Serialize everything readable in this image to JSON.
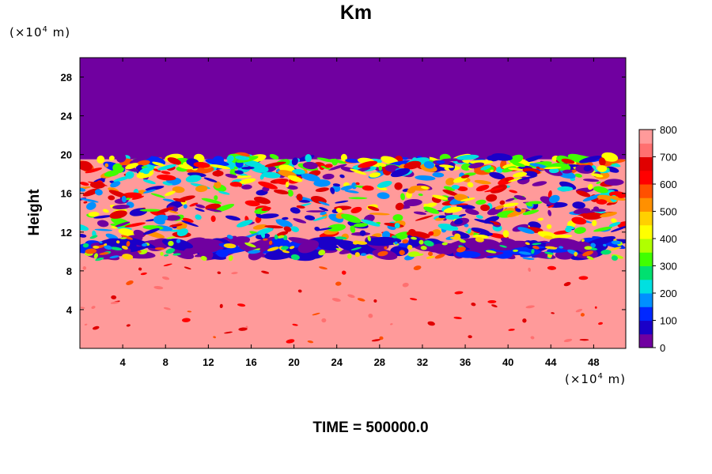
{
  "chart_data": {
    "type": "heatmap",
    "title": "Km",
    "ylabel": "Height",
    "xlabel": "",
    "y_unit": "(×10",
    "x_unit": "(×10",
    "unit_exp": "4",
    "unit_tail": "m)",
    "xlim": [
      0,
      51
    ],
    "ylim": [
      0,
      30
    ],
    "x_ticks": [
      4,
      8,
      12,
      16,
      20,
      24,
      28,
      32,
      36,
      40,
      44,
      48
    ],
    "y_ticks": [
      4,
      8,
      12,
      16,
      20,
      24,
      28
    ],
    "colorbar": {
      "min": 0,
      "max": 800,
      "ticks": [
        0,
        100,
        200,
        300,
        400,
        500,
        600,
        700,
        800
      ],
      "colors": [
        "#7000a0",
        "#1a00c8",
        "#0028ff",
        "#0090ff",
        "#00e0e0",
        "#00e070",
        "#40ff00",
        "#b0ff00",
        "#ffff00",
        "#ffd000",
        "#ff9000",
        "#ff5000",
        "#ff0000",
        "#e00000",
        "#ff7070",
        "#ff9a9a"
      ]
    },
    "regions": [
      {
        "label": "upper",
        "y_range": [
          19.5,
          30
        ],
        "value": 0
      },
      {
        "label": "cloud-layer",
        "y_range": [
          9,
          19.5
        ],
        "value": "mixed 0-800"
      },
      {
        "label": "inner-band",
        "y_range": [
          9.2,
          11.2
        ],
        "value": "low 0-200"
      },
      {
        "label": "lower",
        "y_range": [
          0,
          9
        ],
        "value": 800
      }
    ]
  },
  "footer": {
    "time_label": "TIME = 500000.0"
  }
}
